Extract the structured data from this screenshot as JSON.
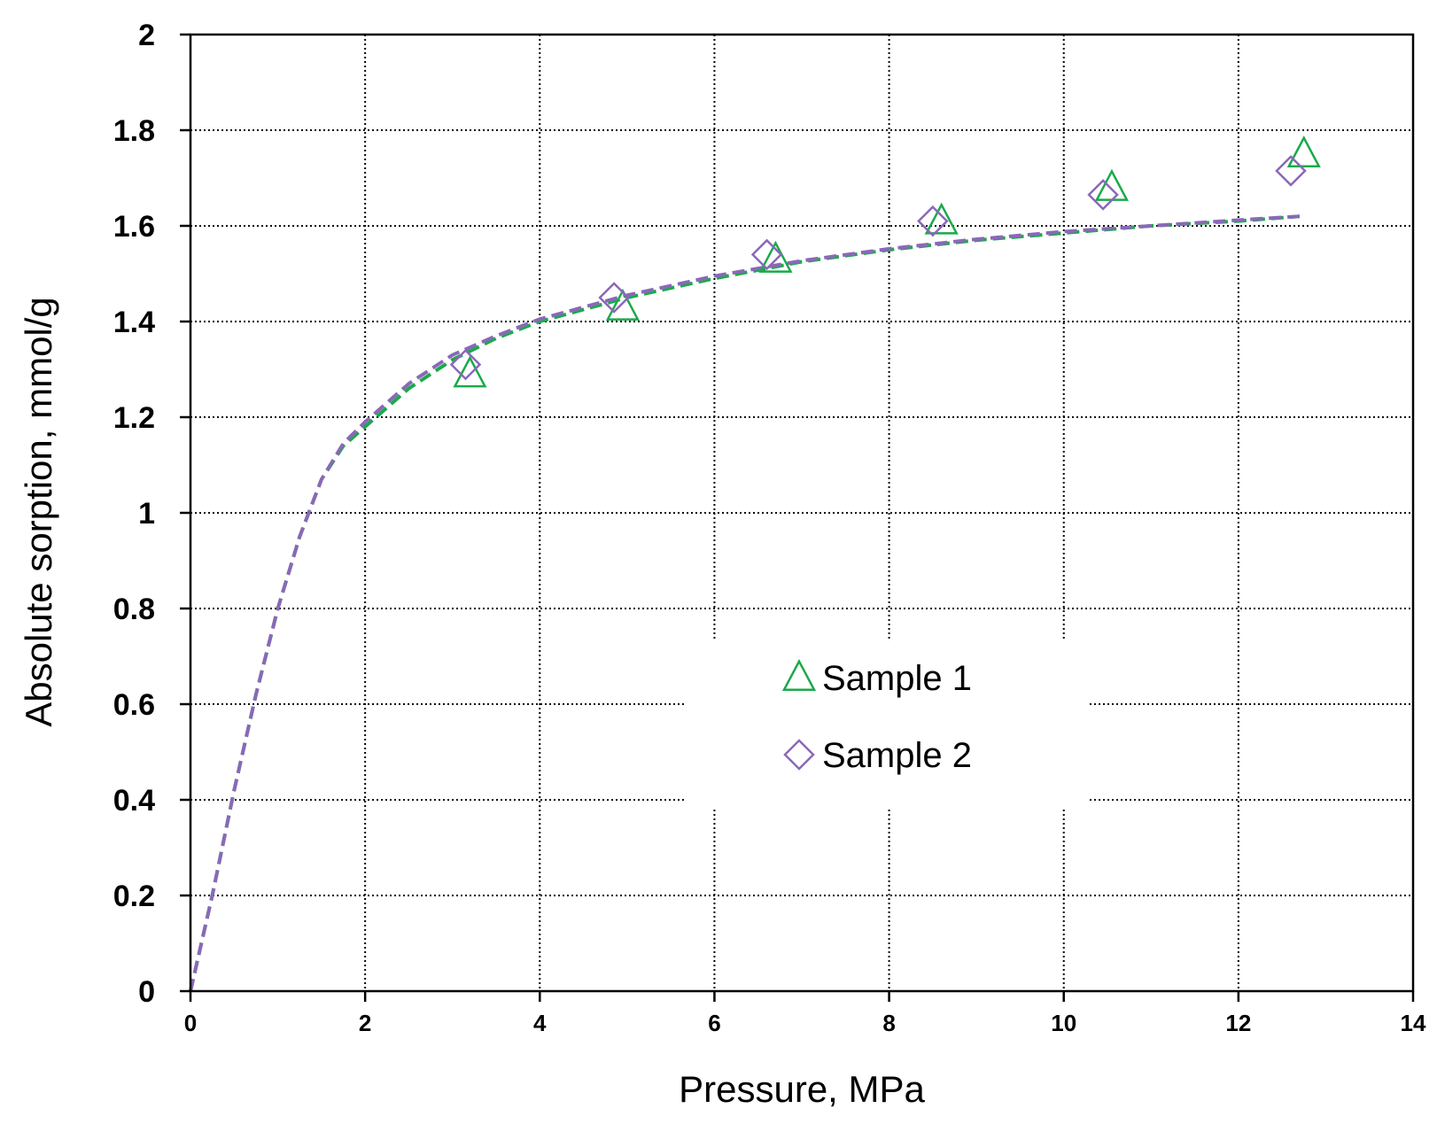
{
  "chart_data": {
    "type": "scatter",
    "xlabel": "Pressure, MPa",
    "ylabel": "Absolute sorption, mmol/g",
    "xlim": [
      0,
      14
    ],
    "ylim": [
      0,
      2
    ],
    "x_ticks": [
      "0",
      "2",
      "4",
      "6",
      "8",
      "10",
      "12",
      "14"
    ],
    "y_ticks": [
      "0",
      "0.2",
      "0.4",
      "0.6",
      "0.8",
      "1",
      "1.2",
      "1.4",
      "1.6",
      "1.8",
      "2"
    ],
    "grid": true,
    "legend_position": "center-right",
    "series": [
      {
        "name": "Sample 1",
        "marker": "triangle",
        "color": "#1aaa4a",
        "x": [
          3.2,
          4.95,
          6.7,
          8.6,
          10.55,
          12.75
        ],
        "y": [
          1.29,
          1.43,
          1.53,
          1.61,
          1.68,
          1.75
        ]
      },
      {
        "name": "Sample 2",
        "marker": "diamond",
        "color": "#8a68b8",
        "x": [
          3.15,
          4.85,
          6.6,
          8.5,
          10.45,
          12.6
        ],
        "y": [
          1.31,
          1.45,
          1.54,
          1.61,
          1.665,
          1.715
        ]
      }
    ],
    "fit_curves": [
      {
        "series": "Sample 1",
        "style": "dashed",
        "color": "#1aaa4a",
        "x": [
          0,
          0.25,
          0.5,
          0.75,
          1,
          1.25,
          1.5,
          1.75,
          2,
          2.5,
          3,
          3.5,
          4,
          5,
          6,
          7,
          8,
          9,
          10,
          11,
          12,
          12.7
        ],
        "y": [
          0,
          0.2,
          0.42,
          0.62,
          0.8,
          0.95,
          1.07,
          1.14,
          1.18,
          1.26,
          1.32,
          1.365,
          1.4,
          1.45,
          1.49,
          1.525,
          1.55,
          1.57,
          1.585,
          1.6,
          1.61,
          1.62
        ]
      },
      {
        "series": "Sample 2",
        "style": "dashed",
        "color": "#8a68b8",
        "x": [
          0,
          0.25,
          0.5,
          0.75,
          1,
          1.25,
          1.5,
          1.75,
          2,
          2.5,
          3,
          3.5,
          4,
          5,
          6,
          7,
          8,
          9,
          10,
          11,
          12,
          12.7
        ],
        "y": [
          0,
          0.2,
          0.42,
          0.62,
          0.8,
          0.95,
          1.07,
          1.145,
          1.19,
          1.27,
          1.33,
          1.37,
          1.405,
          1.455,
          1.495,
          1.527,
          1.552,
          1.572,
          1.588,
          1.6,
          1.612,
          1.62
        ]
      }
    ]
  }
}
